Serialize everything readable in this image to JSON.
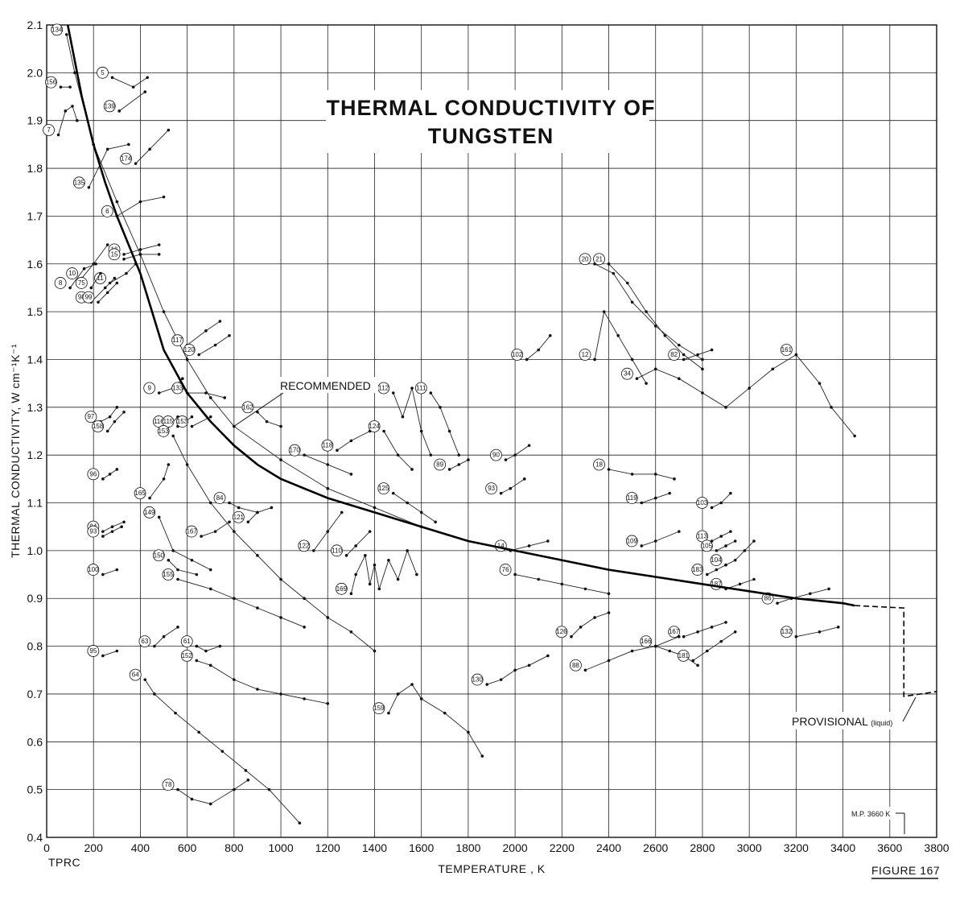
{
  "chart_data": {
    "type": "line",
    "title": [
      "THERMAL CONDUCTIVITY OF",
      "TUNGSTEN"
    ],
    "xlabel": "TEMPERATURE , K",
    "ylabel": "THERMAL CONDUCTIVITY, W cm⁻¹K⁻¹",
    "xlim": [
      0,
      3800
    ],
    "ylim": [
      0.4,
      2.1
    ],
    "x_ticks": [
      0,
      200,
      400,
      600,
      800,
      1000,
      1200,
      1400,
      1600,
      1800,
      2000,
      2200,
      2400,
      2600,
      2800,
      3000,
      3200,
      3400,
      3600,
      3800
    ],
    "y_ticks": [
      0.4,
      0.5,
      0.6,
      0.7,
      0.8,
      0.9,
      1.0,
      1.1,
      1.2,
      1.3,
      1.4,
      1.5,
      1.6,
      1.7,
      1.8,
      1.9,
      2.0,
      2.1
    ],
    "grid": true,
    "footer_left": "TPRC",
    "footer_right": "FIGURE 167",
    "annotations": {
      "recommended": "RECOMMENDED",
      "provisional": "PROVISIONAL",
      "provisional_suffix": "(liquid)",
      "melting_point": "M.P. 3660 K"
    },
    "recommended_curve": {
      "name": "RECOMMENDED",
      "x": [
        90,
        150,
        200,
        250,
        300,
        350,
        400,
        450,
        500,
        600,
        700,
        800,
        900,
        1000,
        1200,
        1400,
        1600,
        1800,
        2000,
        2200,
        2400,
        2600,
        2800,
        3000,
        3200,
        3400,
        3450
      ],
      "y": [
        2.1,
        1.95,
        1.85,
        1.77,
        1.7,
        1.64,
        1.58,
        1.5,
        1.42,
        1.33,
        1.27,
        1.22,
        1.18,
        1.15,
        1.11,
        1.08,
        1.05,
        1.02,
        1.0,
        0.98,
        0.96,
        0.945,
        0.93,
        0.915,
        0.9,
        0.89,
        0.885
      ]
    },
    "provisional_curve": {
      "name": "PROVISIONAL",
      "x": [
        3450,
        3660,
        3660,
        3800
      ],
      "y": [
        0.885,
        0.88,
        0.695,
        0.705
      ]
    },
    "series": [
      {
        "ref": "134",
        "x": [
          85,
          120,
          200,
          300,
          400,
          500,
          600,
          700,
          800,
          1000,
          1200,
          1400,
          1600
        ],
        "y": [
          2.08,
          2.0,
          1.85,
          1.73,
          1.62,
          1.5,
          1.4,
          1.32,
          1.26,
          1.19,
          1.13,
          1.09,
          1.05
        ]
      },
      {
        "ref": "5",
        "x": [
          280,
          370,
          430
        ],
        "y": [
          1.99,
          1.97,
          1.99
        ]
      },
      {
        "ref": "139",
        "x": [
          310,
          420
        ],
        "y": [
          1.92,
          1.96
        ]
      },
      {
        "ref": "156",
        "x": [
          60,
          100
        ],
        "y": [
          1.97,
          1.97
        ]
      },
      {
        "ref": "7",
        "x": [
          50,
          80,
          110,
          130
        ],
        "y": [
          1.87,
          1.92,
          1.93,
          1.9
        ]
      },
      {
        "ref": "135",
        "x": [
          180,
          260,
          350
        ],
        "y": [
          1.76,
          1.84,
          1.85
        ]
      },
      {
        "ref": "174",
        "x": [
          380,
          440,
          520
        ],
        "y": [
          1.81,
          1.84,
          1.88
        ]
      },
      {
        "ref": "6",
        "x": [
          300,
          400,
          500
        ],
        "y": [
          1.7,
          1.73,
          1.74
        ]
      },
      {
        "ref": "16",
        "x": [
          330,
          400,
          480
        ],
        "y": [
          1.62,
          1.63,
          1.64
        ]
      },
      {
        "ref": "15",
        "x": [
          330,
          400,
          480
        ],
        "y": [
          1.61,
          1.62,
          1.62
        ]
      },
      {
        "ref": "11",
        "x": [
          270,
          340,
          380
        ],
        "y": [
          1.56,
          1.58,
          1.6
        ]
      },
      {
        "ref": "10",
        "x": [
          150,
          200,
          260
        ],
        "y": [
          1.57,
          1.6,
          1.64
        ]
      },
      {
        "ref": "8",
        "x": [
          100,
          160,
          210
        ],
        "y": [
          1.55,
          1.59,
          1.6
        ]
      },
      {
        "ref": "75",
        "x": [
          190,
          230
        ],
        "y": [
          1.55,
          1.58
        ]
      },
      {
        "ref": "98",
        "x": [
          190,
          250,
          290
        ],
        "y": [
          1.52,
          1.55,
          1.57
        ]
      },
      {
        "ref": "99",
        "x": [
          220,
          260,
          300
        ],
        "y": [
          1.52,
          1.54,
          1.56
        ]
      },
      {
        "ref": "117",
        "x": [
          600,
          680,
          740
        ],
        "y": [
          1.43,
          1.46,
          1.48
        ]
      },
      {
        "ref": "120",
        "x": [
          650,
          720,
          780
        ],
        "y": [
          1.41,
          1.43,
          1.45
        ]
      },
      {
        "ref": "9",
        "x": [
          480,
          540,
          580
        ],
        "y": [
          1.33,
          1.34,
          1.36
        ]
      },
      {
        "ref": "133",
        "x": [
          600,
          680,
          760
        ],
        "y": [
          1.33,
          1.33,
          1.32
        ]
      },
      {
        "ref": "116",
        "x": [
          520,
          560
        ],
        "y": [
          1.26,
          1.28
        ]
      },
      {
        "ref": "115",
        "x": [
          560,
          620
        ],
        "y": [
          1.26,
          1.28
        ]
      },
      {
        "ref": "153",
        "x": [
          620,
          700
        ],
        "y": [
          1.26,
          1.28
        ]
      },
      {
        "ref": "97",
        "x": [
          230,
          270,
          300
        ],
        "y": [
          1.27,
          1.28,
          1.3
        ]
      },
      {
        "ref": "158",
        "x": [
          260,
          290,
          330
        ],
        "y": [
          1.25,
          1.27,
          1.29
        ]
      },
      {
        "ref": "96",
        "x": [
          240,
          270,
          300
        ],
        "y": [
          1.15,
          1.16,
          1.17
        ]
      },
      {
        "ref": "94",
        "x": [
          240,
          280,
          330
        ],
        "y": [
          1.04,
          1.05,
          1.06
        ]
      },
      {
        "ref": "93",
        "x": [
          240,
          280,
          320
        ],
        "y": [
          1.03,
          1.04,
          1.05
        ]
      },
      {
        "ref": "100",
        "x": [
          240,
          300
        ],
        "y": [
          0.95,
          0.96
        ]
      },
      {
        "ref": "95",
        "x": [
          240,
          300
        ],
        "y": [
          0.78,
          0.79
        ]
      },
      {
        "ref": "165",
        "x": [
          440,
          500,
          520
        ],
        "y": [
          1.11,
          1.15,
          1.18
        ]
      },
      {
        "ref": "149",
        "x": [
          480,
          540,
          620,
          700
        ],
        "y": [
          1.07,
          1.0,
          0.98,
          0.96
        ]
      },
      {
        "ref": "150",
        "x": [
          520,
          560,
          640
        ],
        "y": [
          0.98,
          0.96,
          0.95
        ]
      },
      {
        "ref": "155",
        "x": [
          560,
          700,
          800,
          900,
          1000,
          1100
        ],
        "y": [
          0.94,
          0.92,
          0.9,
          0.88,
          0.86,
          0.84
        ]
      },
      {
        "ref": "153",
        "x": [
          540,
          600,
          700,
          800,
          900,
          1000,
          1100,
          1200,
          1300,
          1400
        ],
        "y": [
          1.24,
          1.18,
          1.1,
          1.04,
          0.99,
          0.94,
          0.9,
          0.86,
          0.83,
          0.79
        ]
      },
      {
        "ref": "64",
        "x": [
          420,
          460,
          550,
          650,
          750,
          850,
          950,
          1080
        ],
        "y": [
          0.73,
          0.7,
          0.66,
          0.62,
          0.58,
          0.54,
          0.5,
          0.43
        ]
      },
      {
        "ref": "63",
        "x": [
          460,
          500,
          560
        ],
        "y": [
          0.8,
          0.82,
          0.84
        ]
      },
      {
        "ref": "61",
        "x": [
          640,
          680,
          740
        ],
        "y": [
          0.8,
          0.79,
          0.8
        ]
      },
      {
        "ref": "152",
        "x": [
          640,
          700,
          800,
          900,
          1000,
          1100,
          1200
        ],
        "y": [
          0.77,
          0.76,
          0.73,
          0.71,
          0.7,
          0.69,
          0.68
        ]
      },
      {
        "ref": "78",
        "x": [
          560,
          620,
          700,
          800,
          860
        ],
        "y": [
          0.5,
          0.48,
          0.47,
          0.5,
          0.52
        ]
      },
      {
        "ref": "84",
        "x": [
          780,
          820,
          900
        ],
        "y": [
          1.1,
          1.09,
          1.08
        ]
      },
      {
        "ref": "121",
        "x": [
          860,
          900,
          960
        ],
        "y": [
          1.06,
          1.08,
          1.09
        ]
      },
      {
        "ref": "167",
        "x": [
          660,
          720,
          780
        ],
        "y": [
          1.03,
          1.04,
          1.06
        ]
      },
      {
        "ref": "162",
        "x": [
          900,
          940,
          1000
        ],
        "y": [
          1.29,
          1.27,
          1.26
        ]
      },
      {
        "ref": "122",
        "x": [
          1140,
          1200,
          1260
        ],
        "y": [
          1.0,
          1.04,
          1.08
        ]
      },
      {
        "ref": "170",
        "x": [
          1100,
          1200,
          1300
        ],
        "y": [
          1.2,
          1.18,
          1.16
        ]
      },
      {
        "ref": "118",
        "x": [
          1240,
          1300,
          1380
        ],
        "y": [
          1.21,
          1.23,
          1.25
        ]
      },
      {
        "ref": "110",
        "x": [
          1280,
          1320,
          1380
        ],
        "y": [
          0.99,
          1.01,
          1.04
        ]
      },
      {
        "ref": "169",
        "x": [
          1300,
          1320,
          1360,
          1380,
          1400,
          1420,
          1460,
          1500,
          1540,
          1580
        ],
        "y": [
          0.91,
          0.95,
          0.99,
          0.93,
          0.97,
          0.92,
          0.98,
          0.94,
          1.0,
          0.95
        ]
      },
      {
        "ref": "124",
        "x": [
          1440,
          1500,
          1560
        ],
        "y": [
          1.25,
          1.2,
          1.17
        ]
      },
      {
        "ref": "112",
        "x": [
          1480,
          1520,
          1560,
          1600,
          1640
        ],
        "y": [
          1.33,
          1.28,
          1.34,
          1.25,
          1.2
        ]
      },
      {
        "ref": "111",
        "x": [
          1640,
          1680,
          1720,
          1760
        ],
        "y": [
          1.33,
          1.3,
          1.25,
          1.2
        ]
      },
      {
        "ref": "125",
        "x": [
          1480,
          1540,
          1600,
          1660
        ],
        "y": [
          1.12,
          1.1,
          1.08,
          1.06
        ]
      },
      {
        "ref": "89",
        "x": [
          1720,
          1760,
          1800
        ],
        "y": [
          1.17,
          1.18,
          1.19
        ]
      },
      {
        "ref": "90",
        "x": [
          1960,
          2000,
          2060
        ],
        "y": [
          1.19,
          1.2,
          1.22
        ]
      },
      {
        "ref": "93",
        "x": [
          1940,
          1980,
          2040
        ],
        "y": [
          1.12,
          1.13,
          1.15
        ]
      },
      {
        "ref": "14",
        "x": [
          1980,
          2060,
          2140
        ],
        "y": [
          1.0,
          1.01,
          1.02
        ]
      },
      {
        "ref": "76",
        "x": [
          2000,
          2100,
          2200,
          2300,
          2400
        ],
        "y": [
          0.95,
          0.94,
          0.93,
          0.92,
          0.91
        ]
      },
      {
        "ref": "102",
        "x": [
          2050,
          2100,
          2150
        ],
        "y": [
          1.4,
          1.42,
          1.45
        ]
      },
      {
        "ref": "159",
        "x": [
          1460,
          1500,
          1560,
          1600,
          1700,
          1800,
          1860
        ],
        "y": [
          0.66,
          0.7,
          0.72,
          0.69,
          0.66,
          0.62,
          0.57
        ]
      },
      {
        "ref": "130",
        "x": [
          1880,
          1940,
          2000,
          2060,
          2140
        ],
        "y": [
          0.72,
          0.73,
          0.75,
          0.76,
          0.78
        ]
      },
      {
        "ref": "88",
        "x": [
          2300,
          2400,
          2500,
          2600,
          2700
        ],
        "y": [
          0.75,
          0.77,
          0.79,
          0.8,
          0.82
        ]
      },
      {
        "ref": "126",
        "x": [
          2240,
          2280,
          2340,
          2400
        ],
        "y": [
          0.82,
          0.84,
          0.86,
          0.87
        ]
      },
      {
        "ref": "166",
        "x": [
          2600,
          2660,
          2720,
          2780
        ],
        "y": [
          0.8,
          0.79,
          0.78,
          0.76
        ]
      },
      {
        "ref": "181",
        "x": [
          2760,
          2820,
          2880,
          2940
        ],
        "y": [
          0.77,
          0.79,
          0.81,
          0.83
        ]
      },
      {
        "ref": "167",
        "x": [
          2720,
          2780,
          2840,
          2900
        ],
        "y": [
          0.82,
          0.83,
          0.84,
          0.85
        ]
      },
      {
        "ref": "119",
        "x": [
          2540,
          2600,
          2660
        ],
        "y": [
          1.1,
          1.11,
          1.12
        ]
      },
      {
        "ref": "18",
        "x": [
          2400,
          2500,
          2600,
          2680
        ],
        "y": [
          1.17,
          1.16,
          1.16,
          1.15
        ]
      },
      {
        "ref": "109",
        "x": [
          2540,
          2600,
          2700
        ],
        "y": [
          1.01,
          1.02,
          1.04
        ]
      },
      {
        "ref": "12",
        "x": [
          2340,
          2380,
          2440,
          2500,
          2560
        ],
        "y": [
          1.4,
          1.5,
          1.45,
          1.4,
          1.35
        ]
      },
      {
        "ref": "20",
        "x": [
          2340,
          2420,
          2500,
          2600,
          2700,
          2800
        ],
        "y": [
          1.6,
          1.58,
          1.52,
          1.47,
          1.43,
          1.4
        ]
      },
      {
        "ref": "21",
        "x": [
          2400,
          2480,
          2560,
          2640,
          2720,
          2800
        ],
        "y": [
          1.6,
          1.56,
          1.5,
          1.45,
          1.41,
          1.38
        ]
      },
      {
        "ref": "82",
        "x": [
          2720,
          2780,
          2840
        ],
        "y": [
          1.4,
          1.41,
          1.42
        ]
      },
      {
        "ref": "34",
        "x": [
          2520,
          2600,
          2700,
          2800,
          2900,
          3000,
          3100,
          3200
        ],
        "y": [
          1.36,
          1.38,
          1.36,
          1.33,
          1.3,
          1.34,
          1.38,
          1.41
        ]
      },
      {
        "ref": "103",
        "x": [
          2840,
          2880,
          2920
        ],
        "y": [
          1.09,
          1.1,
          1.12
        ]
      },
      {
        "ref": "113",
        "x": [
          2840,
          2880,
          2920
        ],
        "y": [
          1.02,
          1.03,
          1.04
        ]
      },
      {
        "ref": "105",
        "x": [
          2860,
          2900,
          2940
        ],
        "y": [
          1.0,
          1.01,
          1.02
        ]
      },
      {
        "ref": "104",
        "x": [
          2900,
          2940,
          2980,
          3020
        ],
        "y": [
          0.97,
          0.98,
          1.0,
          1.02
        ]
      },
      {
        "ref": "183",
        "x": [
          2820,
          2860,
          2900
        ],
        "y": [
          0.95,
          0.96,
          0.97
        ]
      },
      {
        "ref": "187",
        "x": [
          2900,
          2960,
          3020
        ],
        "y": [
          0.92,
          0.93,
          0.94
        ]
      },
      {
        "ref": "86",
        "x": [
          3120,
          3180,
          3260,
          3340
        ],
        "y": [
          0.89,
          0.9,
          0.91,
          0.92
        ]
      },
      {
        "ref": "132",
        "x": [
          3200,
          3300,
          3380
        ],
        "y": [
          0.82,
          0.83,
          0.84
        ]
      },
      {
        "ref": "161",
        "x": [
          3200,
          3300,
          3350,
          3450
        ],
        "y": [
          1.41,
          1.35,
          1.3,
          1.24
        ]
      }
    ]
  }
}
